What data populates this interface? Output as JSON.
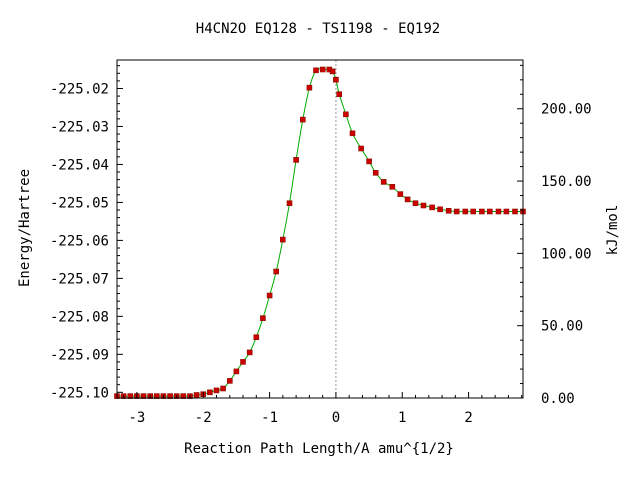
{
  "chart_data": {
    "type": "line",
    "title": "H4CN2O   EQ128 - TS1198 - EQ192",
    "xlabel": "Reaction Path Length/A amu^{1/2}",
    "ylabel": "Energy/Hartree",
    "y2label": "kJ/mol",
    "xlim": [
      -3.3,
      2.82
    ],
    "ylim": [
      -225.1015,
      -225.0125
    ],
    "y2lim": [
      0.0,
      233.7
    ],
    "x_ticks": [
      -3,
      -2,
      -1,
      0,
      1,
      2
    ],
    "x_tick_labels": [
      "-3",
      "-2",
      "-1",
      "0",
      "1",
      "2"
    ],
    "y_ticks": [
      -225.02,
      -225.03,
      -225.04,
      -225.05,
      -225.06,
      -225.07,
      -225.08,
      -225.09,
      -225.1
    ],
    "y_tick_labels": [
      "-225.02",
      "-225.03",
      "-225.04",
      "-225.05",
      "-225.06",
      "-225.07",
      "-225.08",
      "-225.09",
      "-225.10"
    ],
    "y2_ticks": [
      0,
      50,
      100,
      150,
      200
    ],
    "y2_tick_labels": [
      "0.00",
      "50.00",
      "100.00",
      "150.00",
      "200.00"
    ],
    "ts_marker_x": 0.0,
    "line_color": "#00aa00",
    "point_color": "#cc0000",
    "series": [
      {
        "x": [
          -3.3,
          -3.2,
          -3.1,
          -3.0,
          -2.9,
          -2.8,
          -2.7,
          -2.6,
          -2.5,
          -2.4,
          -2.3,
          -2.2,
          -2.1,
          -2.0,
          -1.9,
          -1.8,
          -1.7,
          -1.6,
          -1.5,
          -1.4,
          -1.3,
          -1.2,
          -1.1,
          -1.0,
          -0.9,
          -0.8,
          -0.7,
          -0.6,
          -0.5,
          -0.4,
          -0.3,
          -0.2,
          -0.1,
          -0.05,
          0.0,
          0.05,
          0.15,
          0.25,
          0.38,
          0.5,
          0.6,
          0.72,
          0.85,
          0.97,
          1.08,
          1.2,
          1.32,
          1.45,
          1.57,
          1.7,
          1.82,
          1.95,
          2.07,
          2.2,
          2.32,
          2.45,
          2.57,
          2.7,
          2.82
        ],
        "values": [
          -225.101,
          -225.101,
          -225.101,
          -225.101,
          -225.101,
          -225.101,
          -225.101,
          -225.101,
          -225.101,
          -225.101,
          -225.101,
          -225.101,
          -225.1007,
          -225.1005,
          -225.1,
          -225.0995,
          -225.099,
          -225.097,
          -225.0945,
          -225.092,
          -225.0895,
          -225.0855,
          -225.0805,
          -225.0745,
          -225.0682,
          -225.0598,
          -225.0502,
          -225.0388,
          -225.0282,
          -225.0198,
          -225.0152,
          -225.015,
          -225.015,
          -225.0155,
          -225.0177,
          -225.0215,
          -225.0268,
          -225.0318,
          -225.0358,
          -225.0392,
          -225.0422,
          -225.0446,
          -225.0459,
          -225.0478,
          -225.0492,
          -225.0502,
          -225.0508,
          -225.0513,
          -225.0518,
          -225.0522,
          -225.0524,
          -225.0524,
          -225.0524,
          -225.0524,
          -225.0524,
          -225.0524,
          -225.0524,
          -225.0524,
          -225.0524
        ]
      }
    ]
  }
}
